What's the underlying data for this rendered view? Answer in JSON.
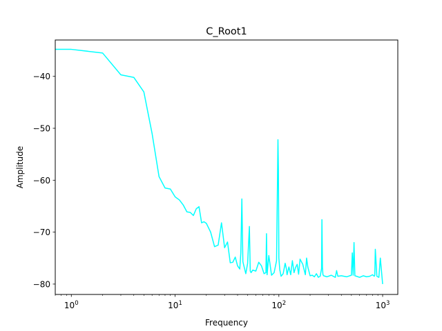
{
  "chart_data": {
    "type": "line",
    "title": "C_Root1",
    "xlabel": "Frequency",
    "ylabel": "Amplitude",
    "xscale": "log",
    "xlim": [
      0.7,
      1400
    ],
    "ylim": [
      -82,
      -33
    ],
    "grid": false,
    "x_ticks": [
      {
        "value": 1,
        "base": "10",
        "exp": "0"
      },
      {
        "value": 10,
        "base": "10",
        "exp": "1"
      },
      {
        "value": 100,
        "base": "10",
        "exp": "2"
      },
      {
        "value": 1000,
        "base": "10",
        "exp": "3"
      }
    ],
    "y_ticks": [
      {
        "value": -40,
        "label": "−40"
      },
      {
        "value": -50,
        "label": "−50"
      },
      {
        "value": -60,
        "label": "−60"
      },
      {
        "value": -70,
        "label": "−70"
      },
      {
        "value": -80,
        "label": "−80"
      }
    ],
    "series": [
      {
        "color": "#00ffff",
        "x": [
          0.7,
          1,
          2,
          3,
          4,
          5,
          6,
          7,
          8,
          9,
          10,
          11,
          12,
          13,
          14,
          15,
          16,
          17,
          18,
          19,
          20,
          22,
          24,
          26,
          28,
          30,
          32,
          34,
          36,
          38,
          40,
          42,
          43,
          44,
          45,
          48,
          50,
          52,
          53,
          54,
          56,
          60,
          64,
          68,
          72,
          75,
          76,
          77,
          80,
          85,
          90,
          95,
          97,
          98,
          99,
          100,
          102,
          105,
          110,
          115,
          118,
          120,
          125,
          130,
          135,
          140,
          145,
          150,
          155,
          160,
          170,
          180,
          185,
          190,
          200,
          210,
          220,
          230,
          240,
          250,
          258,
          260,
          263,
          266,
          270,
          290,
          320,
          350,
          360,
          370,
          400,
          450,
          500,
          510,
          520,
          530,
          540,
          560,
          600,
          650,
          700,
          750,
          800,
          830,
          840,
          850,
          880,
          900,
          920,
          950,
          1000
        ],
        "y": [
          -34.8,
          -34.8,
          -35.5,
          -39.7,
          -40.2,
          -43.0,
          -51.0,
          -59.3,
          -61.5,
          -61.7,
          -63.2,
          -63.8,
          -64.8,
          -66.1,
          -66.2,
          -66.8,
          -65.5,
          -65.1,
          -68.2,
          -68.0,
          -68.3,
          -70.0,
          -72.8,
          -72.5,
          -68.2,
          -73.0,
          -71.9,
          -75.9,
          -75.8,
          -74.8,
          -76.5,
          -77.1,
          -74.0,
          -63.6,
          -75.7,
          -78.0,
          -76.0,
          -68.9,
          -77.5,
          -77.8,
          -77.3,
          -77.5,
          -75.8,
          -76.5,
          -78.0,
          -77.8,
          -70.3,
          -78.2,
          -74.5,
          -78.3,
          -77.8,
          -75.5,
          -60.0,
          -52.2,
          -58.0,
          -75.0,
          -77.2,
          -78.5,
          -78.0,
          -76.0,
          -77.0,
          -78.2,
          -76.7,
          -78.2,
          -75.5,
          -77.8,
          -76.8,
          -76.2,
          -78.1,
          -75.2,
          -76.2,
          -78.2,
          -75.0,
          -76.7,
          -78.4,
          -78.3,
          -78.6,
          -78.0,
          -78.7,
          -78.5,
          -77.0,
          -67.6,
          -76.8,
          -78.2,
          -78.4,
          -78.6,
          -78.3,
          -78.7,
          -77.4,
          -78.5,
          -78.4,
          -78.6,
          -78.3,
          -74.0,
          -78.3,
          -72.0,
          -78.4,
          -78.5,
          -78.7,
          -78.4,
          -78.6,
          -78.5,
          -78.2,
          -78.5,
          -78.3,
          -73.3,
          -78.5,
          -78.6,
          -78.7,
          -75.0,
          -80.0
        ]
      }
    ]
  }
}
